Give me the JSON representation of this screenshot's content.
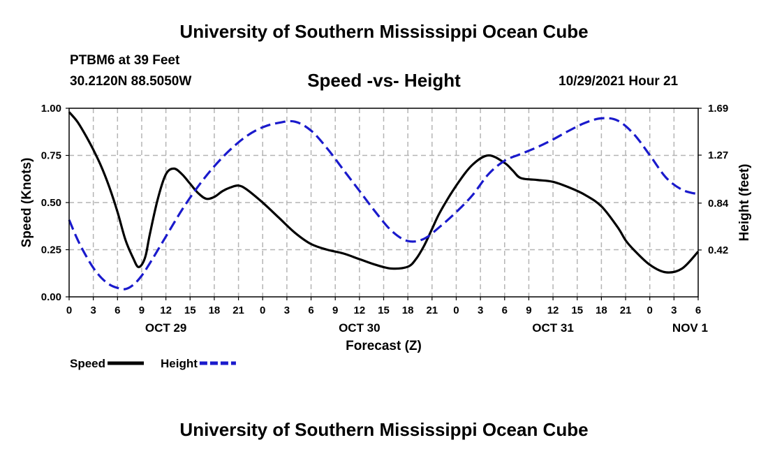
{
  "header": {
    "title": "University of Southern Mississippi Ocean Cube",
    "station": "PTBM6 at 39 Feet",
    "coords": "30.2120N  88.5050W",
    "datetime": "10/29/2021 Hour 21",
    "footer_title": "University of Southern Mississippi Ocean Cube"
  },
  "chart_data": {
    "type": "line",
    "title": "Speed -vs- Height",
    "xlabel": "Forecast (Z)",
    "ylabel": "Speed (Knots)",
    "y2label": "Height (feet)",
    "xlim": [
      0,
      78
    ],
    "ylim": [
      0,
      1
    ],
    "y2lim": [
      0,
      1.69
    ],
    "x_ticks": [
      0,
      3,
      6,
      9,
      12,
      15,
      18,
      21,
      24,
      27,
      30,
      33,
      36,
      39,
      42,
      45,
      48,
      51,
      54,
      57,
      60,
      63,
      66,
      69,
      72,
      75,
      78
    ],
    "x_tick_labels": [
      "0",
      "3",
      "6",
      "9",
      "12",
      "15",
      "18",
      "21",
      "0",
      "3",
      "6",
      "9",
      "12",
      "15",
      "18",
      "21",
      "0",
      "3",
      "6",
      "9",
      "12",
      "15",
      "18",
      "21",
      "0",
      "3",
      "6"
    ],
    "day_labels": [
      {
        "x": 12,
        "label": "OCT 29"
      },
      {
        "x": 36,
        "label": "OCT 30"
      },
      {
        "x": 60,
        "label": "OCT 31"
      },
      {
        "x": 77,
        "label": "NOV 1"
      }
    ],
    "y_ticks": [
      0,
      0.25,
      0.5,
      0.75,
      1.0
    ],
    "y_tick_labels": [
      "0.00",
      "0.25",
      "0.50",
      "0.75",
      "1.00"
    ],
    "y2_ticks": [
      0.42,
      0.84,
      1.27,
      1.69
    ],
    "y2_tick_labels": [
      "0.42",
      "0.84",
      "1.27",
      "1.69"
    ],
    "grid": true,
    "legend": [
      {
        "name": "Speed",
        "color": "#000000",
        "dash": false
      },
      {
        "name": "Height",
        "color": "#1a1acc",
        "dash": true
      }
    ],
    "series": [
      {
        "name": "Speed",
        "axis": "left",
        "color": "#000000",
        "x": [
          0,
          1,
          2,
          3,
          4,
          5,
          6,
          7,
          8,
          8.5,
          9,
          9.5,
          10,
          11,
          12,
          13,
          14,
          15,
          16,
          17,
          18,
          19,
          20,
          21,
          22,
          24,
          26,
          28,
          30,
          32,
          34,
          36,
          38,
          40,
          42,
          43,
          44,
          45,
          46,
          48,
          50,
          52,
          54,
          55,
          56,
          58,
          60,
          62,
          64,
          66,
          68,
          69,
          70,
          72,
          74,
          76,
          78
        ],
        "y": [
          0.98,
          0.93,
          0.86,
          0.78,
          0.69,
          0.58,
          0.45,
          0.3,
          0.2,
          0.16,
          0.17,
          0.22,
          0.33,
          0.52,
          0.65,
          0.68,
          0.65,
          0.6,
          0.55,
          0.52,
          0.53,
          0.56,
          0.58,
          0.59,
          0.57,
          0.5,
          0.42,
          0.34,
          0.28,
          0.25,
          0.23,
          0.2,
          0.17,
          0.15,
          0.16,
          0.2,
          0.27,
          0.36,
          0.45,
          0.59,
          0.7,
          0.75,
          0.71,
          0.67,
          0.63,
          0.62,
          0.61,
          0.58,
          0.54,
          0.48,
          0.37,
          0.3,
          0.25,
          0.17,
          0.13,
          0.15,
          0.24
        ]
      },
      {
        "name": "Height",
        "axis": "right",
        "color": "#1a1acc",
        "x": [
          0,
          1,
          2,
          3,
          4,
          5,
          6,
          7,
          8,
          9,
          10,
          12,
          14,
          16,
          18,
          20,
          22,
          24,
          26,
          28,
          30,
          32,
          34,
          36,
          38,
          40,
          42,
          44,
          46,
          48,
          50,
          52,
          54,
          56,
          58,
          60,
          62,
          64,
          66,
          68,
          70,
          72,
          74,
          76,
          78
        ],
        "y": [
          0.69,
          0.52,
          0.38,
          0.26,
          0.17,
          0.11,
          0.08,
          0.07,
          0.11,
          0.19,
          0.3,
          0.54,
          0.78,
          0.99,
          1.17,
          1.32,
          1.44,
          1.52,
          1.56,
          1.57,
          1.49,
          1.33,
          1.14,
          0.95,
          0.76,
          0.59,
          0.5,
          0.52,
          0.63,
          0.76,
          0.91,
          1.1,
          1.22,
          1.28,
          1.34,
          1.41,
          1.49,
          1.56,
          1.6,
          1.58,
          1.46,
          1.27,
          1.07,
          0.96,
          0.92
        ]
      }
    ]
  }
}
